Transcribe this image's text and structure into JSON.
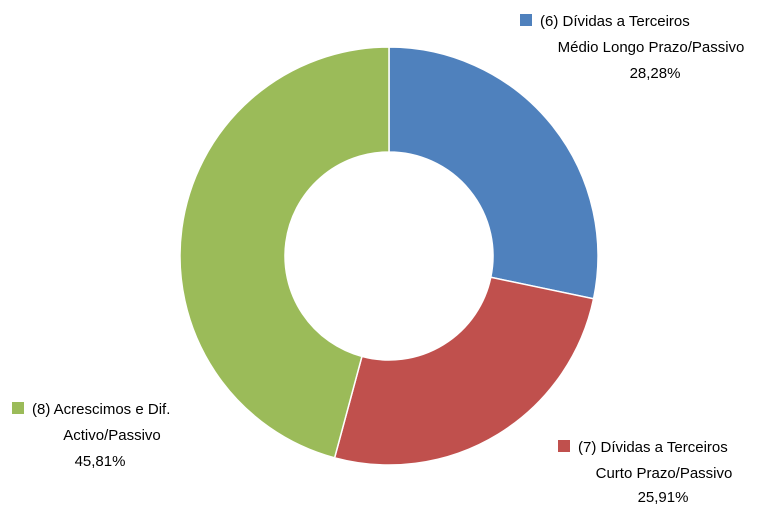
{
  "chart_data": {
    "type": "donut",
    "categories": [
      [
        "(6) Dívidas a Terceiros",
        "Médio Longo Prazo/Passivo"
      ],
      [
        "(7) Dívidas a Terceiros",
        "Curto Prazo/Passivo"
      ],
      [
        "(8) Acrescimos e Dif.",
        "Activo/Passivo"
      ]
    ],
    "values": [
      28.28,
      25.91,
      45.81
    ],
    "value_labels": [
      "28,28%",
      "25,91%",
      "45,81%"
    ],
    "colors": [
      "#4f81bd",
      "#c0504d",
      "#9bbb59"
    ]
  }
}
